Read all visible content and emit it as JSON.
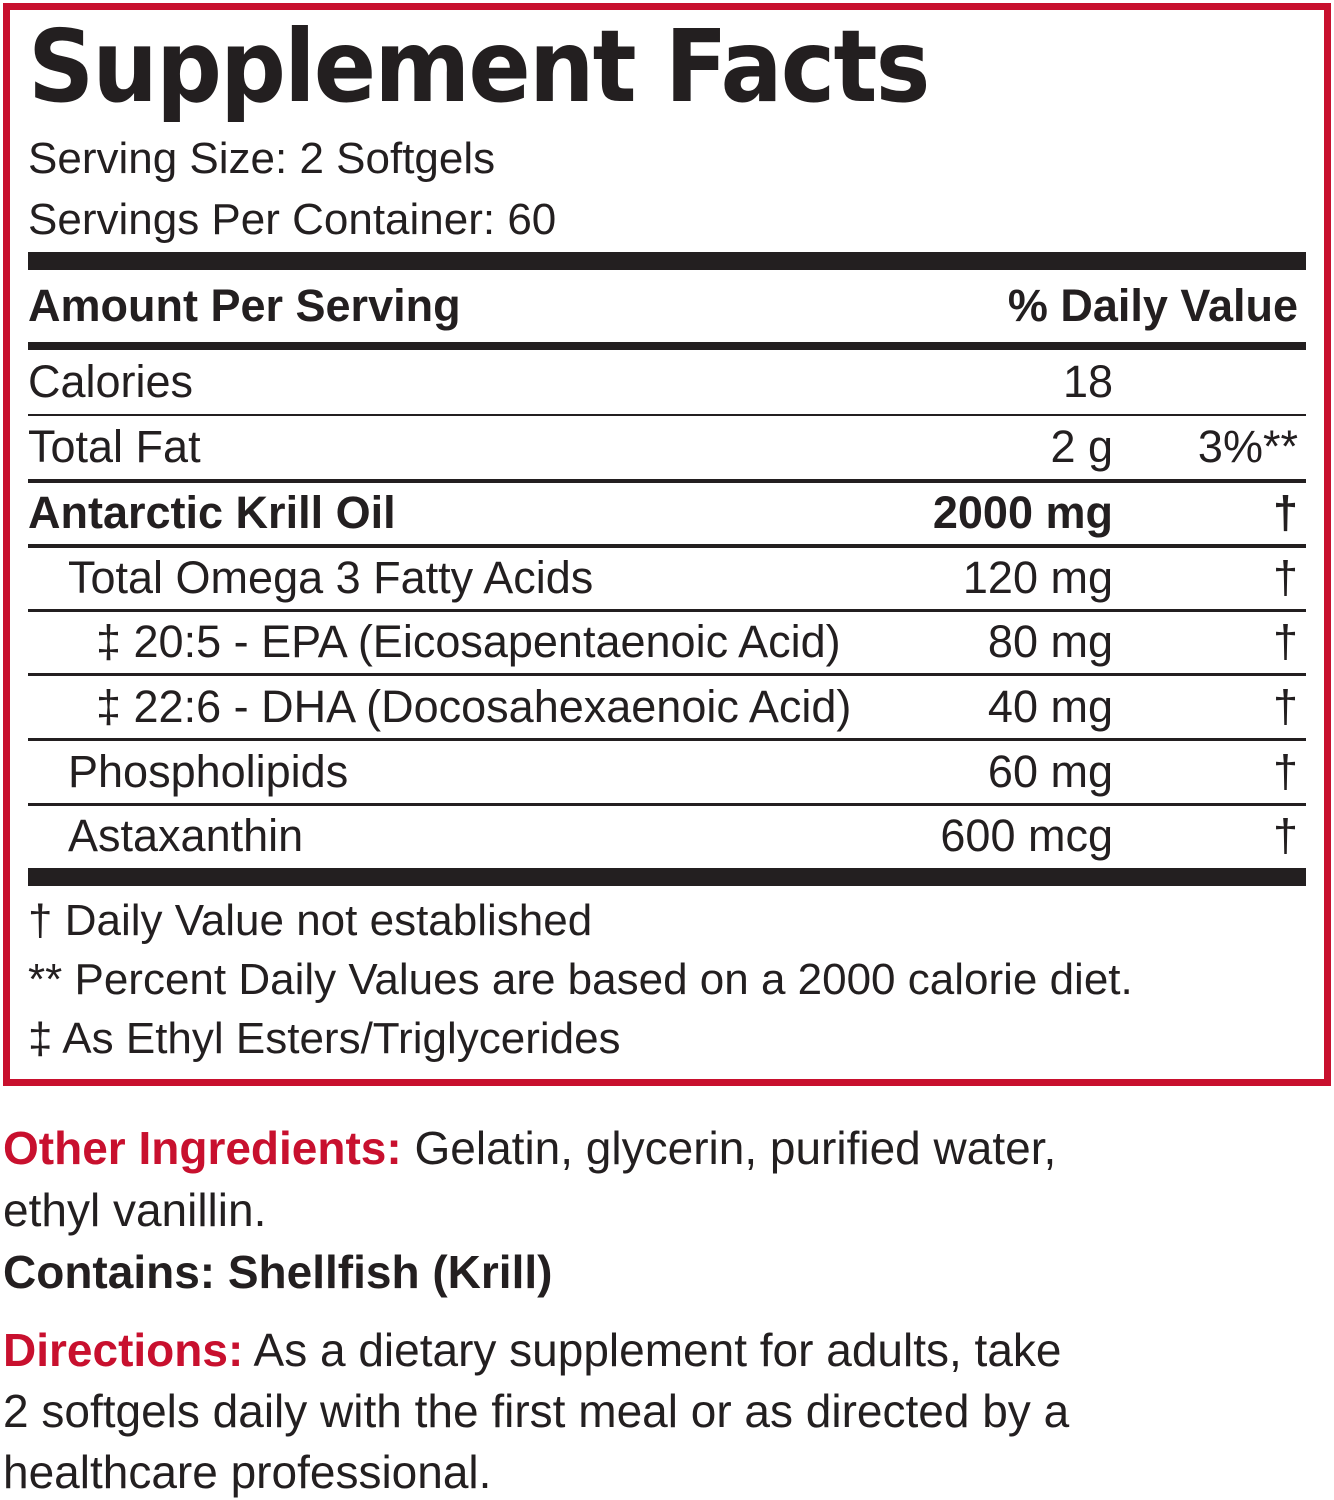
{
  "accent_color": "#c8102e",
  "title": "Supplement Facts",
  "serving_size": "Serving Size: 2 Softgels",
  "servings_per_container": "Servings Per Container: 60",
  "header": {
    "amount": "Amount Per Serving",
    "dv": "% Daily Value"
  },
  "rows": [
    {
      "name": "Calories",
      "amount": "18",
      "dv": ""
    },
    {
      "name": "Total Fat",
      "amount": "2 g",
      "dv": "3%**"
    },
    {
      "name": "Antarctic Krill Oil",
      "amount": "2000 mg",
      "dv": "†"
    },
    {
      "name": "Total Omega 3 Fatty Acids",
      "amount": "120 mg",
      "dv": "†"
    },
    {
      "name": "‡ 20:5 - EPA (Eicosapentaenoic Acid)",
      "amount": "80 mg",
      "dv": "†"
    },
    {
      "name": "‡ 22:6 - DHA (Docosahexaenoic Acid)",
      "amount": "40 mg",
      "dv": "†"
    },
    {
      "name": "Phospholipids",
      "amount": "60 mg",
      "dv": "†"
    },
    {
      "name": "Astaxanthin",
      "amount": "600 mcg",
      "dv": "†"
    }
  ],
  "footnotes": [
    "† Daily Value not established",
    "** Percent Daily Values are based on a 2000 calorie diet.",
    "‡ As Ethyl Esters/Triglycerides"
  ],
  "other_ingredients": {
    "label": "Other Ingredients:",
    "line1": " Gelatin, glycerin, purified water,",
    "line2": "ethyl vanillin."
  },
  "contains": "Contains: Shellfish (Krill)",
  "directions": {
    "label": "Directions:",
    "line1": " As a dietary supplement for adults, take",
    "line2": "2 softgels daily with the first meal or as directed by a",
    "line3": "healthcare professional."
  }
}
